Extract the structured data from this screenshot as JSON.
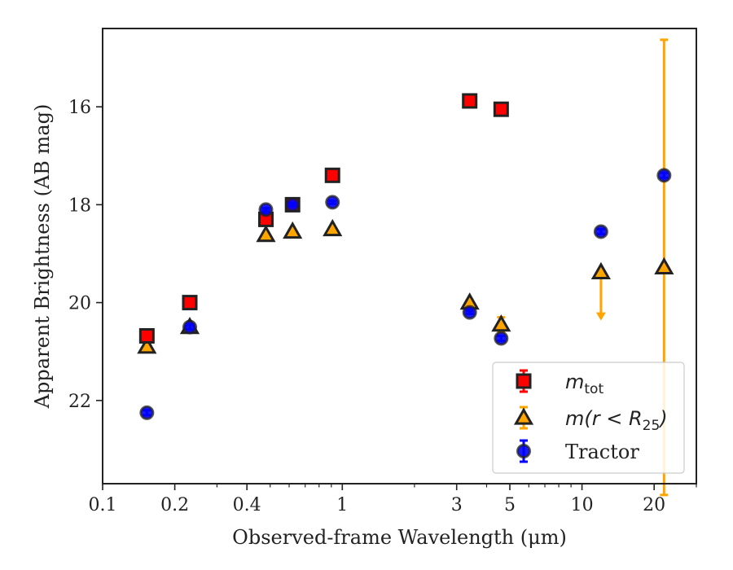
{
  "chart_data": {
    "type": "scatter",
    "xlabel": "Observed-frame Wavelength (μm)",
    "ylabel": "Apparent Brightness (AB mag)",
    "xscale": "log",
    "xlim": [
      0.1,
      30
    ],
    "ylim": [
      23.7,
      14.4
    ],
    "y_inverted": true,
    "grid": false,
    "legend_position": "lower-right",
    "x_ticks": [
      {
        "value": 0.1,
        "label": "0.1"
      },
      {
        "value": 0.2,
        "label": "0.2"
      },
      {
        "value": 0.4,
        "label": "0.4"
      },
      {
        "value": 1,
        "label": "1"
      },
      {
        "value": 3,
        "label": "3"
      },
      {
        "value": 5,
        "label": "5"
      },
      {
        "value": 10,
        "label": "10"
      },
      {
        "value": 20,
        "label": "20"
      }
    ],
    "y_ticks": [
      {
        "value": 16,
        "label": "16"
      },
      {
        "value": 18,
        "label": "18"
      },
      {
        "value": 20,
        "label": "20"
      },
      {
        "value": 22,
        "label": "22"
      }
    ],
    "series": [
      {
        "name": "m_tot",
        "legend_main": "m",
        "legend_sub": "tot",
        "marker": "square",
        "color": "#ff0000",
        "error_color": "#ff0000",
        "x": [
          0.153,
          0.231,
          0.48,
          0.62,
          0.91,
          3.4,
          4.6
        ],
        "y": [
          20.68,
          20.0,
          18.3,
          18.0,
          17.4,
          15.88,
          16.05
        ],
        "yerr": [
          0.08,
          0.05,
          0.05,
          0.03,
          0.03,
          0.03,
          0.03
        ]
      },
      {
        "name": "m(r<R_25)",
        "legend_main": "m(r < R",
        "legend_sub": "25",
        "legend_tail": ")",
        "marker": "triangle",
        "color": "#ffa500",
        "error_color": "#ffa500",
        "x": [
          0.153,
          0.231,
          0.48,
          0.62,
          0.91,
          3.4,
          4.6,
          12.0,
          22.0
        ],
        "y": [
          20.9,
          20.5,
          18.62,
          18.55,
          18.5,
          20.0,
          20.45,
          19.38,
          19.28
        ],
        "yerr": [
          0.05,
          0.05,
          0.03,
          0.03,
          0.03,
          0.05,
          0.15,
          0,
          4.65
        ],
        "upper_limits": [
          {
            "x": 12.0,
            "y_from": 19.38,
            "y_to": 20.3
          }
        ]
      },
      {
        "name": "Tractor",
        "legend_main": "Tractor",
        "marker": "circle",
        "color": "#0000ff",
        "error_color": "#0000ff",
        "x": [
          0.153,
          0.231,
          0.48,
          0.62,
          0.91,
          3.4,
          4.6,
          12.0,
          22.0
        ],
        "y": [
          22.25,
          20.5,
          18.1,
          18.0,
          17.95,
          20.2,
          20.73,
          18.55,
          17.4
        ],
        "yerr": [
          0.05,
          0.05,
          0.03,
          0.03,
          0.03,
          0.03,
          0.05,
          0.05,
          0.05
        ]
      }
    ]
  }
}
